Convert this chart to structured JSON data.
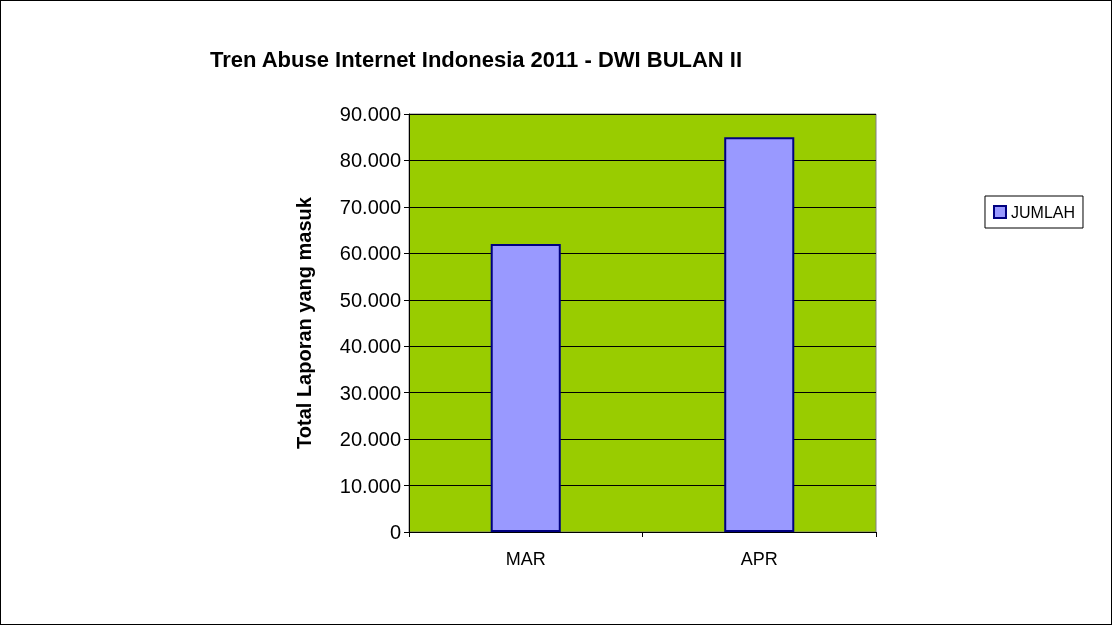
{
  "chart_data": {
    "type": "bar",
    "title": "Tren Abuse Internet Indonesia 2011 - DWI BULAN II",
    "ylabel": "Total Laporan yang masuk",
    "categories": [
      "MAR",
      "APR"
    ],
    "series": [
      {
        "name": "JUMLAH",
        "color": "#9999ff",
        "values": [
          62000,
          85000
        ]
      }
    ],
    "ylim": [
      0,
      90000
    ],
    "yticks": [
      {
        "value": 0,
        "label": "0"
      },
      {
        "value": 10000,
        "label": "10.000"
      },
      {
        "value": 20000,
        "label": "20.000"
      },
      {
        "value": 30000,
        "label": "30.000"
      },
      {
        "value": 40000,
        "label": "40.000"
      },
      {
        "value": 50000,
        "label": "50.000"
      },
      {
        "value": 60000,
        "label": "60.000"
      },
      {
        "value": 70000,
        "label": "70.000"
      },
      {
        "value": 80000,
        "label": "80.000"
      },
      {
        "value": 90000,
        "label": "90.000"
      }
    ],
    "grid": "y",
    "legend": "right"
  }
}
